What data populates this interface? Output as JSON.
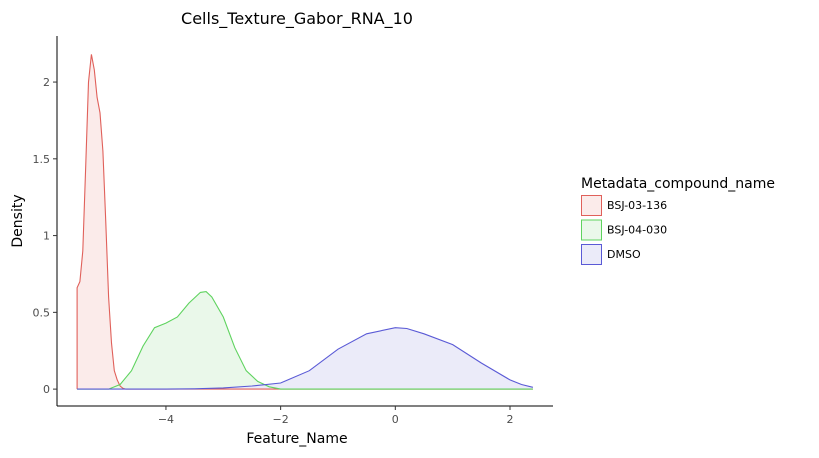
{
  "chart_data": {
    "type": "area",
    "title": "Cells_Texture_Gabor_RNA_10",
    "xlabel": "Feature_Name",
    "ylabel": "Density",
    "xlim": [
      -5.9,
      2.75
    ],
    "ylim": [
      -0.11,
      2.3
    ],
    "x_ticks": [
      -4,
      -2,
      0,
      2
    ],
    "x_tick_labels": [
      "−4",
      "−2",
      "0",
      "2"
    ],
    "y_ticks": [
      0,
      0.5,
      1,
      1.5,
      2
    ],
    "y_tick_labels": [
      "0",
      "0.5",
      "1",
      "1.5",
      "2"
    ],
    "grid": false,
    "legend": {
      "title": "Metadata_compound_name",
      "position": "right"
    },
    "series": [
      {
        "name": "BSJ-03-136",
        "color": "#E0605A",
        "fill": "#FBEBEA",
        "x": [
          -5.55,
          -5.55,
          -5.5,
          -5.45,
          -5.4,
          -5.35,
          -5.3,
          -5.25,
          -5.2,
          -5.15,
          -5.1,
          -5.05,
          -5.0,
          -4.95,
          -4.9,
          -4.85,
          -4.8,
          -4.75,
          -4.7,
          -4.65,
          -4.6,
          -4.55,
          -4.5,
          -3.0,
          0.0,
          2.4
        ],
        "y": [
          0.0,
          0.66,
          0.7,
          0.9,
          1.45,
          2.0,
          2.18,
          2.08,
          1.9,
          1.8,
          1.55,
          1.1,
          0.6,
          0.3,
          0.12,
          0.06,
          0.02,
          0.005,
          0.0,
          0.0,
          0.0,
          0.0,
          0.0,
          0.0,
          0.0,
          0.0
        ]
      },
      {
        "name": "BSJ-04-030",
        "color": "#5FD35F",
        "fill": "#EAF8EA",
        "x": [
          -5.55,
          -5.0,
          -4.8,
          -4.6,
          -4.4,
          -4.2,
          -4.0,
          -3.8,
          -3.6,
          -3.4,
          -3.3,
          -3.2,
          -3.0,
          -2.8,
          -2.6,
          -2.4,
          -2.2,
          -2.0,
          -1.8,
          -1.0,
          0.0,
          2.4
        ],
        "y": [
          0.0,
          0.0,
          0.03,
          0.12,
          0.28,
          0.4,
          0.43,
          0.47,
          0.56,
          0.63,
          0.635,
          0.6,
          0.47,
          0.27,
          0.12,
          0.05,
          0.015,
          0.0,
          0.0,
          0.0,
          0.0,
          0.0
        ]
      },
      {
        "name": "DMSO",
        "color": "#5A5AD6",
        "fill": "#EBEBF9",
        "x": [
          -5.55,
          -4.0,
          -3.5,
          -3.0,
          -2.5,
          -2.0,
          -1.5,
          -1.0,
          -0.5,
          0.0,
          0.2,
          0.5,
          1.0,
          1.5,
          2.0,
          2.2,
          2.4
        ],
        "y": [
          0.0,
          0.0,
          0.002,
          0.008,
          0.02,
          0.04,
          0.12,
          0.26,
          0.36,
          0.4,
          0.395,
          0.36,
          0.29,
          0.17,
          0.06,
          0.03,
          0.012
        ]
      }
    ]
  }
}
